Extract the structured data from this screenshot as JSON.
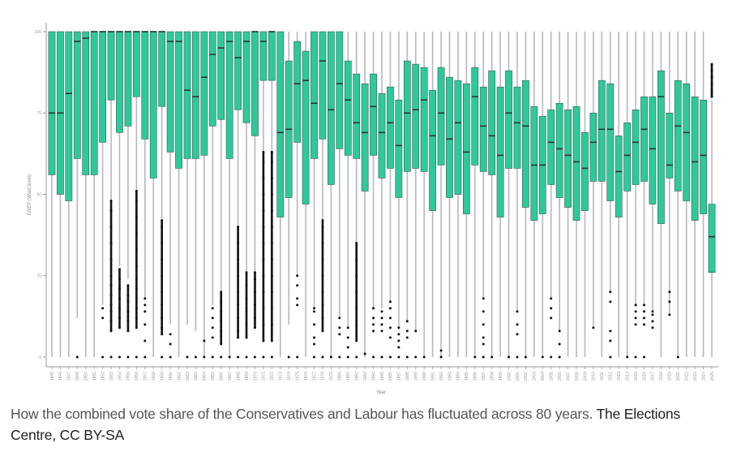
{
  "caption": {
    "text": "How the combined vote share of the Conservatives and Labour has fluctuated across 80 years.",
    "credit": "The Elections Centre, CC BY-SA"
  },
  "colors": {
    "box_fill": "#2ec99a",
    "box_stroke": "#3a5a4e",
    "median": "#1f3b32",
    "whisker": "#b8b8b8",
    "outlier": "#111111",
    "axis": "#9a9a9a"
  },
  "chart_data": {
    "type": "boxplot",
    "title": "",
    "xlabel": "Year",
    "ylabel": "ENEP (Ward level)",
    "ylim": [
      0,
      100
    ],
    "yticks": [
      0,
      25,
      50,
      75,
      100
    ],
    "grid": false,
    "legend": "none",
    "categories": [
      "1945",
      "1946",
      "1947",
      "1949",
      "1950",
      "1951",
      "1952",
      "1953",
      "1954",
      "1955",
      "1956",
      "1957",
      "1958",
      "1959",
      "1960",
      "1961",
      "1962",
      "1963",
      "1964",
      "1965",
      "1966",
      "1967",
      "1968",
      "1969",
      "1970",
      "1971",
      "1972",
      "1973",
      "1974",
      "1975",
      "1976",
      "1977",
      "1978",
      "1979",
      "1980",
      "1981",
      "1982",
      "1983",
      "1984",
      "1985",
      "1986",
      "1987",
      "1988",
      "1989",
      "1990",
      "1991",
      "1992",
      "1993",
      "1994",
      "1995",
      "1996",
      "1997",
      "1998",
      "1999",
      "2000",
      "2001",
      "2002",
      "2003",
      "2004",
      "2005",
      "2006",
      "2007",
      "2008",
      "2009",
      "2010",
      "2011",
      "2012",
      "2013",
      "2014",
      "2015",
      "2016",
      "2017",
      "2018",
      "2019",
      "2021",
      "2022",
      "2023",
      "2024",
      "2025"
    ],
    "boxes": [
      {
        "q1": 56,
        "median": 75,
        "q3": 100,
        "lo": 0,
        "hi": 100,
        "outliers": []
      },
      {
        "q1": 50,
        "median": 75,
        "q3": 100,
        "lo": 0,
        "hi": 100,
        "outliers": []
      },
      {
        "q1": 48,
        "median": 81,
        "q3": 100,
        "lo": 0,
        "hi": 100,
        "outliers": []
      },
      {
        "q1": 61,
        "median": 97,
        "q3": 100,
        "lo": 12,
        "hi": 100,
        "outliers": [
          0
        ]
      },
      {
        "q1": 56,
        "median": 98,
        "q3": 100,
        "lo": 0,
        "hi": 100,
        "outliers": []
      },
      {
        "q1": 56,
        "median": 100,
        "q3": 100,
        "lo": 0,
        "hi": 100,
        "outliers": []
      },
      {
        "q1": 66,
        "median": 100,
        "q3": 100,
        "lo": 16,
        "hi": 100,
        "outliers": [
          0,
          12,
          15
        ]
      },
      {
        "q1": 79,
        "median": 100,
        "q3": 100,
        "lo": 48,
        "hi": 100,
        "outliers": [
          0,
          8,
          11,
          14,
          16,
          19,
          22,
          25,
          30,
          35,
          40,
          45,
          48
        ]
      },
      {
        "q1": 69,
        "median": 100,
        "q3": 100,
        "lo": 28,
        "hi": 100,
        "outliers": [
          0,
          9,
          12,
          15,
          18,
          21,
          24,
          27
        ]
      },
      {
        "q1": 71,
        "median": 100,
        "q3": 100,
        "lo": 24,
        "hi": 100,
        "outliers": [
          0,
          8,
          11,
          14,
          17,
          19,
          22
        ]
      },
      {
        "q1": 80,
        "median": 100,
        "q3": 100,
        "lo": 51,
        "hi": 100,
        "outliers": [
          0,
          9,
          12,
          15,
          18,
          21,
          24,
          28,
          33,
          38,
          43,
          48,
          51
        ]
      },
      {
        "q1": 67,
        "median": 100,
        "q3": 100,
        "lo": 18,
        "hi": 100,
        "outliers": [
          0,
          5,
          10,
          14,
          16,
          18
        ]
      },
      {
        "q1": 55,
        "median": 100,
        "q3": 100,
        "lo": 0,
        "hi": 100,
        "outliers": []
      },
      {
        "q1": 77,
        "median": 100,
        "q3": 100,
        "lo": 42,
        "hi": 100,
        "outliers": [
          0,
          7,
          9,
          12,
          16,
          20,
          25,
          30,
          35,
          40,
          42
        ]
      },
      {
        "q1": 63,
        "median": 97,
        "q3": 100,
        "lo": 10,
        "hi": 100,
        "outliers": [
          0,
          4,
          7
        ]
      },
      {
        "q1": 58,
        "median": 97,
        "q3": 100,
        "lo": 0,
        "hi": 100,
        "outliers": []
      },
      {
        "q1": 61,
        "median": 82,
        "q3": 100,
        "lo": 10,
        "hi": 100,
        "outliers": [
          0
        ]
      },
      {
        "q1": 61,
        "median": 80,
        "q3": 100,
        "lo": 8,
        "hi": 100,
        "outliers": [
          0
        ]
      },
      {
        "q1": 62,
        "median": 86,
        "q3": 100,
        "lo": 0,
        "hi": 100,
        "outliers": [
          0,
          5
        ]
      },
      {
        "q1": 71,
        "median": 93,
        "q3": 100,
        "lo": 16,
        "hi": 100,
        "outliers": [
          0,
          6,
          9,
          12,
          15
        ]
      },
      {
        "q1": 73,
        "median": 95,
        "q3": 100,
        "lo": 20,
        "hi": 100,
        "outliers": [
          0,
          4,
          8,
          11,
          14,
          17,
          20
        ]
      },
      {
        "q1": 61,
        "median": 97,
        "q3": 100,
        "lo": 0,
        "hi": 100,
        "outliers": [
          0
        ]
      },
      {
        "q1": 76,
        "median": 92,
        "q3": 100,
        "lo": 40,
        "hi": 100,
        "outliers": [
          0,
          6,
          8,
          12,
          16,
          20,
          25,
          30,
          35,
          40
        ]
      },
      {
        "q1": 72,
        "median": 97,
        "q3": 100,
        "lo": 26,
        "hi": 100,
        "outliers": [
          0,
          6,
          10,
          14,
          18,
          22,
          26
        ]
      },
      {
        "q1": 68,
        "median": 100,
        "q3": 100,
        "lo": 26,
        "hi": 100,
        "outliers": [
          0,
          9,
          12,
          16,
          20,
          24,
          26
        ]
      },
      {
        "q1": 85,
        "median": 97,
        "q3": 100,
        "lo": 63,
        "hi": 100,
        "outliers": [
          0,
          5,
          10,
          15,
          20,
          25,
          30,
          35,
          40,
          45,
          50,
          55,
          60,
          63
        ]
      },
      {
        "q1": 85,
        "median": 100,
        "q3": 100,
        "lo": 63,
        "hi": 100,
        "outliers": [
          0,
          5,
          10,
          15,
          20,
          25,
          30,
          35,
          40,
          45,
          50,
          55,
          60,
          63
        ]
      },
      {
        "q1": 43,
        "median": 69,
        "q3": 100,
        "lo": 0,
        "hi": 100,
        "outliers": []
      },
      {
        "q1": 49,
        "median": 70,
        "q3": 91,
        "lo": 10,
        "hi": 100,
        "outliers": [
          0
        ]
      },
      {
        "q1": 66,
        "median": 84,
        "q3": 97,
        "lo": 25,
        "hi": 100,
        "outliers": [
          0,
          16,
          18,
          22,
          25
        ]
      },
      {
        "q1": 47,
        "median": 85,
        "q3": 94,
        "lo": 0,
        "hi": 100,
        "outliers": []
      },
      {
        "q1": 61,
        "median": 78,
        "q3": 100,
        "lo": 15,
        "hi": 100,
        "outliers": [
          0,
          4,
          6,
          10,
          14,
          15
        ]
      },
      {
        "q1": 67,
        "median": 91,
        "q3": 100,
        "lo": 42,
        "hi": 100,
        "outliers": [
          0,
          8,
          12,
          16,
          20,
          25,
          30,
          35,
          40,
          42
        ]
      },
      {
        "q1": 53,
        "median": 76,
        "q3": 100,
        "lo": 0,
        "hi": 100,
        "outliers": [
          0
        ]
      },
      {
        "q1": 64,
        "median": 84,
        "q3": 100,
        "lo": 12,
        "hi": 100,
        "outliers": [
          0,
          7,
          9,
          12
        ]
      },
      {
        "q1": 62,
        "median": 79,
        "q3": 91,
        "lo": 9,
        "hi": 100,
        "outliers": [
          0,
          3,
          6,
          9
        ]
      },
      {
        "q1": 61,
        "median": 72,
        "q3": 87,
        "lo": 35,
        "hi": 100,
        "outliers": [
          0,
          5,
          10,
          15,
          20,
          25,
          30,
          35
        ]
      },
      {
        "q1": 51,
        "median": 69,
        "q3": 84,
        "lo": 0,
        "hi": 100,
        "outliers": [
          1
        ]
      },
      {
        "q1": 62,
        "median": 77,
        "q3": 87,
        "lo": 15,
        "hi": 100,
        "outliers": [
          0,
          8,
          10,
          12,
          15
        ]
      },
      {
        "q1": 55,
        "median": 69,
        "q3": 81,
        "lo": 15,
        "hi": 100,
        "outliers": [
          0,
          8,
          10,
          12,
          14
        ]
      },
      {
        "q1": 58,
        "median": 72,
        "q3": 83,
        "lo": 17,
        "hi": 100,
        "outliers": [
          0,
          6,
          9,
          12,
          15,
          17
        ]
      },
      {
        "q1": 49,
        "median": 65,
        "q3": 79,
        "lo": 9,
        "hi": 100,
        "outliers": [
          0,
          3,
          5,
          7,
          9
        ]
      },
      {
        "q1": 57,
        "median": 75,
        "q3": 91,
        "lo": 11,
        "hi": 100,
        "outliers": [
          0,
          6,
          8,
          11
        ]
      },
      {
        "q1": 58,
        "median": 76,
        "q3": 90,
        "lo": 8,
        "hi": 100,
        "outliers": [
          0,
          8
        ]
      },
      {
        "q1": 57,
        "median": 79,
        "q3": 89,
        "lo": 0,
        "hi": 100,
        "outliers": [
          0
        ]
      },
      {
        "q1": 45,
        "median": 68,
        "q3": 82,
        "lo": 0,
        "hi": 100,
        "outliers": []
      },
      {
        "q1": 59,
        "median": 75,
        "q3": 89,
        "lo": 0,
        "hi": 100,
        "outliers": [
          0,
          2
        ]
      },
      {
        "q1": 49,
        "median": 67,
        "q3": 86,
        "lo": 0,
        "hi": 100,
        "outliers": []
      },
      {
        "q1": 50,
        "median": 72,
        "q3": 85,
        "lo": 0,
        "hi": 100,
        "outliers": []
      },
      {
        "q1": 44,
        "median": 63,
        "q3": 84,
        "lo": 0,
        "hi": 100,
        "outliers": []
      },
      {
        "q1": 59,
        "median": 80,
        "q3": 89,
        "lo": 0,
        "hi": 100,
        "outliers": [
          0
        ]
      },
      {
        "q1": 57,
        "median": 71,
        "q3": 83,
        "lo": 18,
        "hi": 100,
        "outliers": [
          0,
          4,
          6,
          10,
          14,
          18
        ]
      },
      {
        "q1": 56,
        "median": 68,
        "q3": 88,
        "lo": 0,
        "hi": 100,
        "outliers": [
          0
        ]
      },
      {
        "q1": 43,
        "median": 62,
        "q3": 83,
        "lo": 0,
        "hi": 100,
        "outliers": []
      },
      {
        "q1": 58,
        "median": 75,
        "q3": 88,
        "lo": 0,
        "hi": 100,
        "outliers": [
          0
        ]
      },
      {
        "q1": 58,
        "median": 72,
        "q3": 83,
        "lo": 14,
        "hi": 100,
        "outliers": [
          0,
          7,
          10,
          14
        ]
      },
      {
        "q1": 46,
        "median": 71,
        "q3": 85,
        "lo": 0,
        "hi": 100,
        "outliers": [
          0
        ]
      },
      {
        "q1": 42,
        "median": 59,
        "q3": 77,
        "lo": 0,
        "hi": 100,
        "outliers": []
      },
      {
        "q1": 44,
        "median": 59,
        "q3": 74,
        "lo": 0,
        "hi": 100,
        "outliers": [
          0
        ]
      },
      {
        "q1": 53,
        "median": 66,
        "q3": 76,
        "lo": 18,
        "hi": 100,
        "outliers": [
          0,
          12,
          15,
          18
        ]
      },
      {
        "q1": 49,
        "median": 64,
        "q3": 78,
        "lo": 8,
        "hi": 100,
        "outliers": [
          0,
          4,
          8
        ]
      },
      {
        "q1": 46,
        "median": 62,
        "q3": 76,
        "lo": 0,
        "hi": 100,
        "outliers": []
      },
      {
        "q1": 42,
        "median": 60,
        "q3": 77,
        "lo": 0,
        "hi": 100,
        "outliers": []
      },
      {
        "q1": 45,
        "median": 58,
        "q3": 69,
        "lo": 0,
        "hi": 100,
        "outliers": []
      },
      {
        "q1": 54,
        "median": 66,
        "q3": 75,
        "lo": 9,
        "hi": 100,
        "outliers": [
          9
        ]
      },
      {
        "q1": 54,
        "median": 70,
        "q3": 85,
        "lo": 0,
        "hi": 100,
        "outliers": []
      },
      {
        "q1": 48,
        "median": 70,
        "q3": 84,
        "lo": 20,
        "hi": 100,
        "outliers": [
          0,
          5,
          8,
          17,
          20
        ]
      },
      {
        "q1": 43,
        "median": 57,
        "q3": 68,
        "lo": 0,
        "hi": 100,
        "outliers": []
      },
      {
        "q1": 51,
        "median": 62,
        "q3": 72,
        "lo": 0,
        "hi": 100,
        "outliers": [
          0
        ]
      },
      {
        "q1": 53,
        "median": 66,
        "q3": 76,
        "lo": 16,
        "hi": 100,
        "outliers": [
          0,
          10,
          12,
          14,
          16
        ]
      },
      {
        "q1": 54,
        "median": 70,
        "q3": 80,
        "lo": 16,
        "hi": 100,
        "outliers": [
          0,
          10,
          12,
          14,
          16
        ]
      },
      {
        "q1": 47,
        "median": 64,
        "q3": 80,
        "lo": 14,
        "hi": 100,
        "outliers": [
          9,
          11,
          13,
          14
        ]
      },
      {
        "q1": 41,
        "median": 80,
        "q3": 88,
        "lo": 0,
        "hi": 100,
        "outliers": []
      },
      {
        "q1": 55,
        "median": 59,
        "q3": 75,
        "lo": 13,
        "hi": 100,
        "outliers": [
          13,
          17,
          20
        ]
      },
      {
        "q1": 51,
        "median": 71,
        "q3": 85,
        "lo": 0,
        "hi": 100,
        "outliers": [
          0
        ]
      },
      {
        "q1": 48,
        "median": 69,
        "q3": 84,
        "lo": 0,
        "hi": 100,
        "outliers": []
      },
      {
        "q1": 42,
        "median": 60,
        "q3": 80,
        "lo": 0,
        "hi": 100,
        "outliers": []
      },
      {
        "q1": 44,
        "median": 62,
        "q3": 79,
        "lo": 0,
        "hi": 100,
        "outliers": []
      },
      {
        "q1": 26,
        "median": 37,
        "q3": 47,
        "lo": 0,
        "hi": 79,
        "outliers": [
          80,
          81,
          82,
          84,
          86,
          88,
          90
        ]
      }
    ]
  }
}
